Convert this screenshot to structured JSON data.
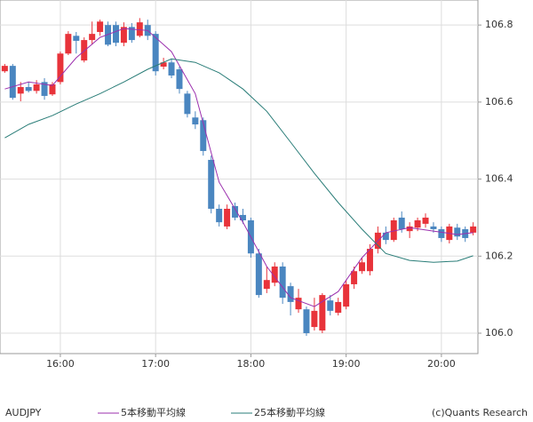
{
  "chart_data": {
    "type": "candlestick",
    "title": "AUDJPY",
    "credit": "(c)Quants Research",
    "up_color": "#e8333a",
    "down_color": "#4a86c0",
    "grid": true,
    "xlim": [
      922,
      1223
    ],
    "ylim": [
      105.947,
      106.865
    ],
    "xticks": [
      {
        "value": 960,
        "label": "16:00"
      },
      {
        "value": 1020,
        "label": "17:00"
      },
      {
        "value": 1080,
        "label": "18:00"
      },
      {
        "value": 1140,
        "label": "19:00"
      },
      {
        "value": 1200,
        "label": "20:00"
      }
    ],
    "yticks": [
      {
        "value": 106,
        "label": "106.0"
      },
      106.2,
      106.4,
      106.6,
      106.8
    ],
    "x": [
      925,
      930,
      935,
      940,
      945,
      950,
      955,
      960,
      965,
      970,
      975,
      980,
      985,
      990,
      995,
      1000,
      1005,
      1010,
      1015,
      1020,
      1025,
      1030,
      1035,
      1040,
      1045,
      1050,
      1055,
      1060,
      1065,
      1070,
      1075,
      1080,
      1085,
      1090,
      1095,
      1100,
      1105,
      1110,
      1115,
      1120,
      1125,
      1130,
      1135,
      1140,
      1145,
      1150,
      1155,
      1160,
      1165,
      1170,
      1175,
      1180,
      1185,
      1190,
      1195,
      1200,
      1205,
      1210,
      1215,
      1220
    ],
    "open": [
      106.68,
      106.694,
      106.622,
      106.639,
      106.629,
      106.652,
      106.62,
      106.652,
      106.726,
      106.772,
      106.708,
      106.761,
      106.782,
      106.8,
      106.8,
      106.754,
      106.795,
      106.772,
      106.8,
      106.777,
      106.692,
      106.703,
      106.685,
      106.622,
      106.56,
      106.553,
      106.45,
      106.323,
      106.277,
      106.33,
      106.307,
      106.293,
      106.207,
      106.115,
      106.131,
      106.173,
      106.122,
      106.062,
      106.062,
      106.016,
      106.007,
      106.085,
      106.053,
      106.069,
      106.127,
      106.161,
      106.161,
      106.219,
      106.261,
      106.242,
      106.3,
      106.265,
      106.274,
      106.284,
      106.277,
      106.27,
      106.242,
      106.274,
      106.27,
      106.261
    ],
    "high": [
      106.699,
      106.699,
      106.652,
      106.652,
      106.657,
      106.662,
      106.652,
      106.731,
      106.784,
      106.782,
      106.768,
      106.809,
      106.814,
      106.809,
      106.809,
      106.807,
      106.805,
      106.818,
      106.814,
      106.784,
      106.715,
      106.712,
      106.692,
      106.629,
      106.576,
      106.56,
      106.461,
      106.334,
      106.334,
      106.339,
      106.323,
      106.3,
      106.219,
      106.173,
      106.184,
      106.184,
      106.131,
      106.115,
      106.069,
      106.092,
      106.104,
      106.099,
      106.092,
      106.138,
      106.173,
      106.196,
      106.231,
      106.277,
      106.277,
      106.3,
      106.316,
      106.288,
      106.3,
      106.311,
      106.288,
      106.277,
      106.284,
      106.284,
      106.277,
      106.288
    ],
    "low": [
      106.676,
      106.606,
      106.602,
      106.625,
      106.622,
      106.606,
      106.616,
      106.646,
      106.722,
      106.726,
      106.703,
      106.749,
      106.772,
      106.745,
      106.745,
      106.745,
      106.754,
      106.768,
      106.761,
      106.669,
      106.685,
      106.662,
      106.622,
      106.56,
      106.53,
      106.461,
      106.311,
      106.277,
      106.27,
      106.293,
      106.284,
      106.196,
      106.092,
      106.104,
      106.122,
      106.076,
      106.046,
      106.053,
      105.993,
      106.007,
      106.0,
      106.046,
      106.046,
      106.062,
      106.115,
      106.154,
      106.15,
      106.207,
      106.231,
      106.237,
      106.261,
      106.247,
      106.265,
      106.274,
      106.261,
      106.237,
      106.233,
      106.242,
      106.237,
      106.254
    ],
    "close": [
      106.694,
      106.611,
      106.639,
      106.629,
      106.646,
      106.616,
      106.646,
      106.726,
      106.777,
      106.759,
      106.761,
      106.777,
      106.809,
      106.749,
      106.754,
      106.795,
      106.761,
      106.807,
      106.772,
      106.68,
      106.703,
      106.669,
      106.634,
      106.569,
      106.542,
      106.473,
      106.323,
      106.288,
      106.323,
      106.3,
      106.293,
      106.207,
      106.099,
      106.138,
      106.173,
      106.092,
      106.081,
      106.092,
      106.0,
      106.058,
      106.099,
      106.058,
      106.081,
      106.127,
      106.161,
      106.184,
      106.219,
      106.261,
      106.242,
      106.293,
      106.27,
      106.277,
      106.293,
      106.3,
      106.27,
      106.247,
      106.277,
      106.251,
      106.247,
      106.277
    ],
    "lines": [
      {
        "name": "5本移動平均線",
        "color": "#9b2fae",
        "x": [
          925,
          940,
          955,
          970,
          985,
          1000,
          1015,
          1030,
          1045,
          1060,
          1075,
          1090,
          1105,
          1120,
          1135,
          1150,
          1165,
          1180,
          1195,
          1210,
          1220
        ],
        "values": [
          106.634,
          106.652,
          106.643,
          106.715,
          106.768,
          106.791,
          106.786,
          106.731,
          106.622,
          106.392,
          106.288,
          106.173,
          106.092,
          106.069,
          106.108,
          106.196,
          106.261,
          106.274,
          106.265,
          106.256,
          106.261
        ]
      },
      {
        "name": "25本移動平均線",
        "color": "#2a7d78",
        "x": [
          925,
          940,
          955,
          970,
          985,
          1000,
          1015,
          1030,
          1045,
          1060,
          1075,
          1090,
          1105,
          1120,
          1135,
          1150,
          1165,
          1180,
          1195,
          1210,
          1220
        ],
        "values": [
          106.507,
          106.542,
          106.565,
          106.595,
          106.622,
          106.652,
          106.685,
          106.712,
          106.703,
          106.676,
          106.634,
          106.576,
          106.496,
          106.415,
          106.339,
          106.27,
          106.207,
          106.189,
          106.184,
          106.187,
          106.201
        ]
      }
    ]
  }
}
